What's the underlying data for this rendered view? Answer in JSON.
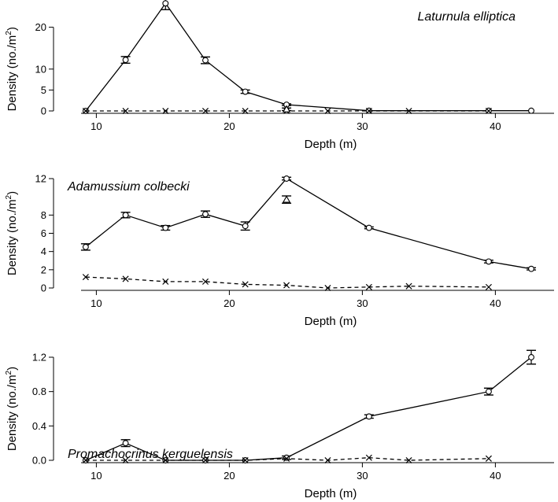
{
  "chart_data": [
    {
      "type": "line",
      "title": "Laturnula elliptica",
      "xlabel": "Depth (m)",
      "ylabel_main": "Density (no./m",
      "ylabel_sup": "2",
      "ylabel_tail": ")",
      "xlim": [
        9,
        43
      ],
      "ylim": [
        0,
        25
      ],
      "xticks": [
        10,
        20,
        30,
        40
      ],
      "yticks": [
        0,
        5,
        10,
        20
      ],
      "series": [
        {
          "style": "solid",
          "marker": "circle",
          "x": [
            9.2,
            12.2,
            15.2,
            18.2,
            21.2,
            24.3,
            30.5,
            39.5,
            42.7
          ],
          "y": [
            0,
            12.2,
            25.7,
            12.1,
            4.6,
            1.5,
            0.05,
            0.05,
            0.05
          ],
          "err": [
            0,
            0.8,
            1.5,
            0.8,
            0.4,
            0.2,
            0,
            0,
            0
          ]
        },
        {
          "style": "dashed",
          "marker": "cross",
          "x": [
            9.2,
            12.2,
            15.2,
            18.2,
            21.2,
            24.3,
            27.4,
            30.5,
            33.5,
            39.5
          ],
          "y": [
            0,
            0,
            0,
            0,
            0,
            0,
            0,
            0,
            0,
            0
          ],
          "err": []
        },
        {
          "style": "none",
          "marker": "triangle",
          "x": [
            24.3
          ],
          "y": [
            0.4
          ],
          "err": [
            0.3
          ]
        }
      ]
    },
    {
      "type": "line",
      "title": "Adamussium colbecki",
      "xlabel": "Depth (m)",
      "ylabel_main": "Density (no./m",
      "ylabel_sup": "2",
      "ylabel_tail": ")",
      "xlim": [
        9,
        43
      ],
      "ylim": [
        0,
        12
      ],
      "xticks": [
        10,
        20,
        30,
        40
      ],
      "yticks": [
        0,
        2,
        4,
        6,
        8,
        12
      ],
      "series": [
        {
          "style": "solid",
          "marker": "circle",
          "x": [
            9.2,
            12.2,
            15.2,
            18.2,
            21.2,
            24.3,
            30.5,
            39.5,
            42.7
          ],
          "y": [
            4.5,
            8.0,
            6.6,
            8.1,
            6.8,
            12.0,
            6.6,
            2.9,
            2.1
          ],
          "err": [
            0.35,
            0.3,
            0.25,
            0.35,
            0.45,
            0.15,
            0.1,
            0.15,
            0.12
          ]
        },
        {
          "style": "dashed",
          "marker": "cross",
          "x": [
            9.2,
            12.2,
            15.2,
            18.2,
            21.2,
            24.3,
            27.4,
            30.5,
            33.5,
            39.5
          ],
          "y": [
            1.2,
            1.0,
            0.7,
            0.7,
            0.4,
            0.3,
            0.0,
            0.1,
            0.2,
            0.1
          ],
          "err": []
        },
        {
          "style": "none",
          "marker": "triangle",
          "x": [
            24.3
          ],
          "y": [
            9.7
          ],
          "err": [
            0.4
          ]
        }
      ]
    },
    {
      "type": "line",
      "title": "Promachocrinus kerguelensis",
      "xlabel": "Depth (m)",
      "ylabel_main": "Density (no./m",
      "ylabel_sup": "2",
      "ylabel_tail": ")",
      "xlim": [
        9,
        43
      ],
      "ylim": [
        0,
        1.2
      ],
      "xticks": [
        10,
        20,
        30,
        40
      ],
      "yticks": [
        "0.0",
        "0.4",
        "0.8",
        "1.2"
      ],
      "series": [
        {
          "style": "solid",
          "marker": "circle",
          "x": [
            9.2,
            12.2,
            15.2,
            18.2,
            21.2,
            24.3,
            30.5,
            39.5,
            42.7
          ],
          "y": [
            0,
            0.2,
            0,
            0,
            0,
            0.03,
            0.51,
            0.8,
            1.2
          ],
          "err": [
            0,
            0.04,
            0,
            0,
            0,
            0.02,
            0.02,
            0.04,
            0.08
          ]
        },
        {
          "style": "dashed",
          "marker": "cross",
          "x": [
            9.2,
            12.2,
            15.2,
            18.2,
            21.2,
            24.3,
            27.4,
            30.5,
            33.5,
            39.5
          ],
          "y": [
            0,
            0,
            0,
            0,
            0,
            0.02,
            0,
            0.03,
            0,
            0.02
          ],
          "err": []
        }
      ]
    }
  ]
}
